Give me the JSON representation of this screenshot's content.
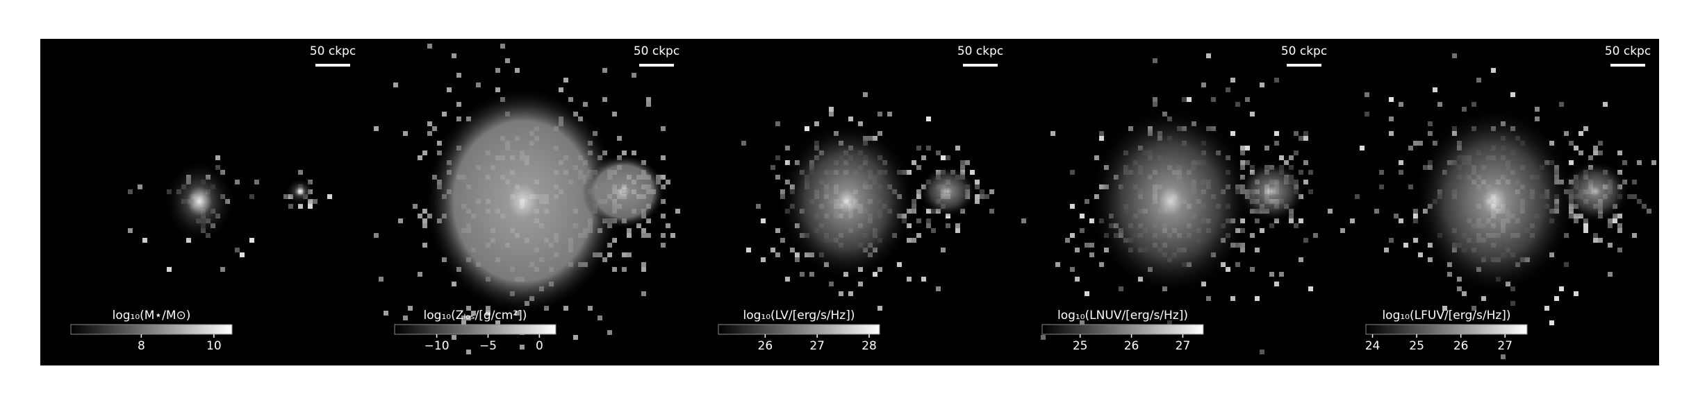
{
  "panels": [
    {
      "scale_bar": "50 ckpc",
      "colorbar": {
        "label": "log₁₀(M⋆/M⊙)",
        "clim": [
          6.06,
          10.5
        ],
        "ticks": [
          8,
          10
        ]
      }
    },
    {
      "scale_bar": "50 ckpc",
      "colorbar": {
        "label": "log₁₀(Zₗₒₛ/[g/cm²])",
        "clim": [
          -14.1,
          1.6
        ],
        "ticks": [
          {
            "value": -10,
            "label": "−10"
          },
          {
            "value": -5,
            "label": "−5"
          },
          0
        ]
      }
    },
    {
      "scale_bar": "50 ckpc",
      "colorbar": {
        "label": "log₁₀(LV/[erg/s/Hz])",
        "clim": [
          25.1,
          28.2
        ],
        "ticks": [
          26,
          27,
          28
        ]
      }
    },
    {
      "scale_bar": "50 ckpc",
      "colorbar": {
        "label": "log₁₀(LNUV/[erg/s/Hz])",
        "clim": [
          24.26,
          27.4
        ],
        "ticks": [
          25,
          26,
          27
        ]
      }
    },
    {
      "scale_bar": "50 ckpc",
      "colorbar": {
        "label": "log₁₀(LFUV/[erg/s/Hz])",
        "clim": [
          23.85,
          27.5
        ],
        "ticks": [
          24,
          25,
          26,
          27
        ]
      }
    }
  ]
}
